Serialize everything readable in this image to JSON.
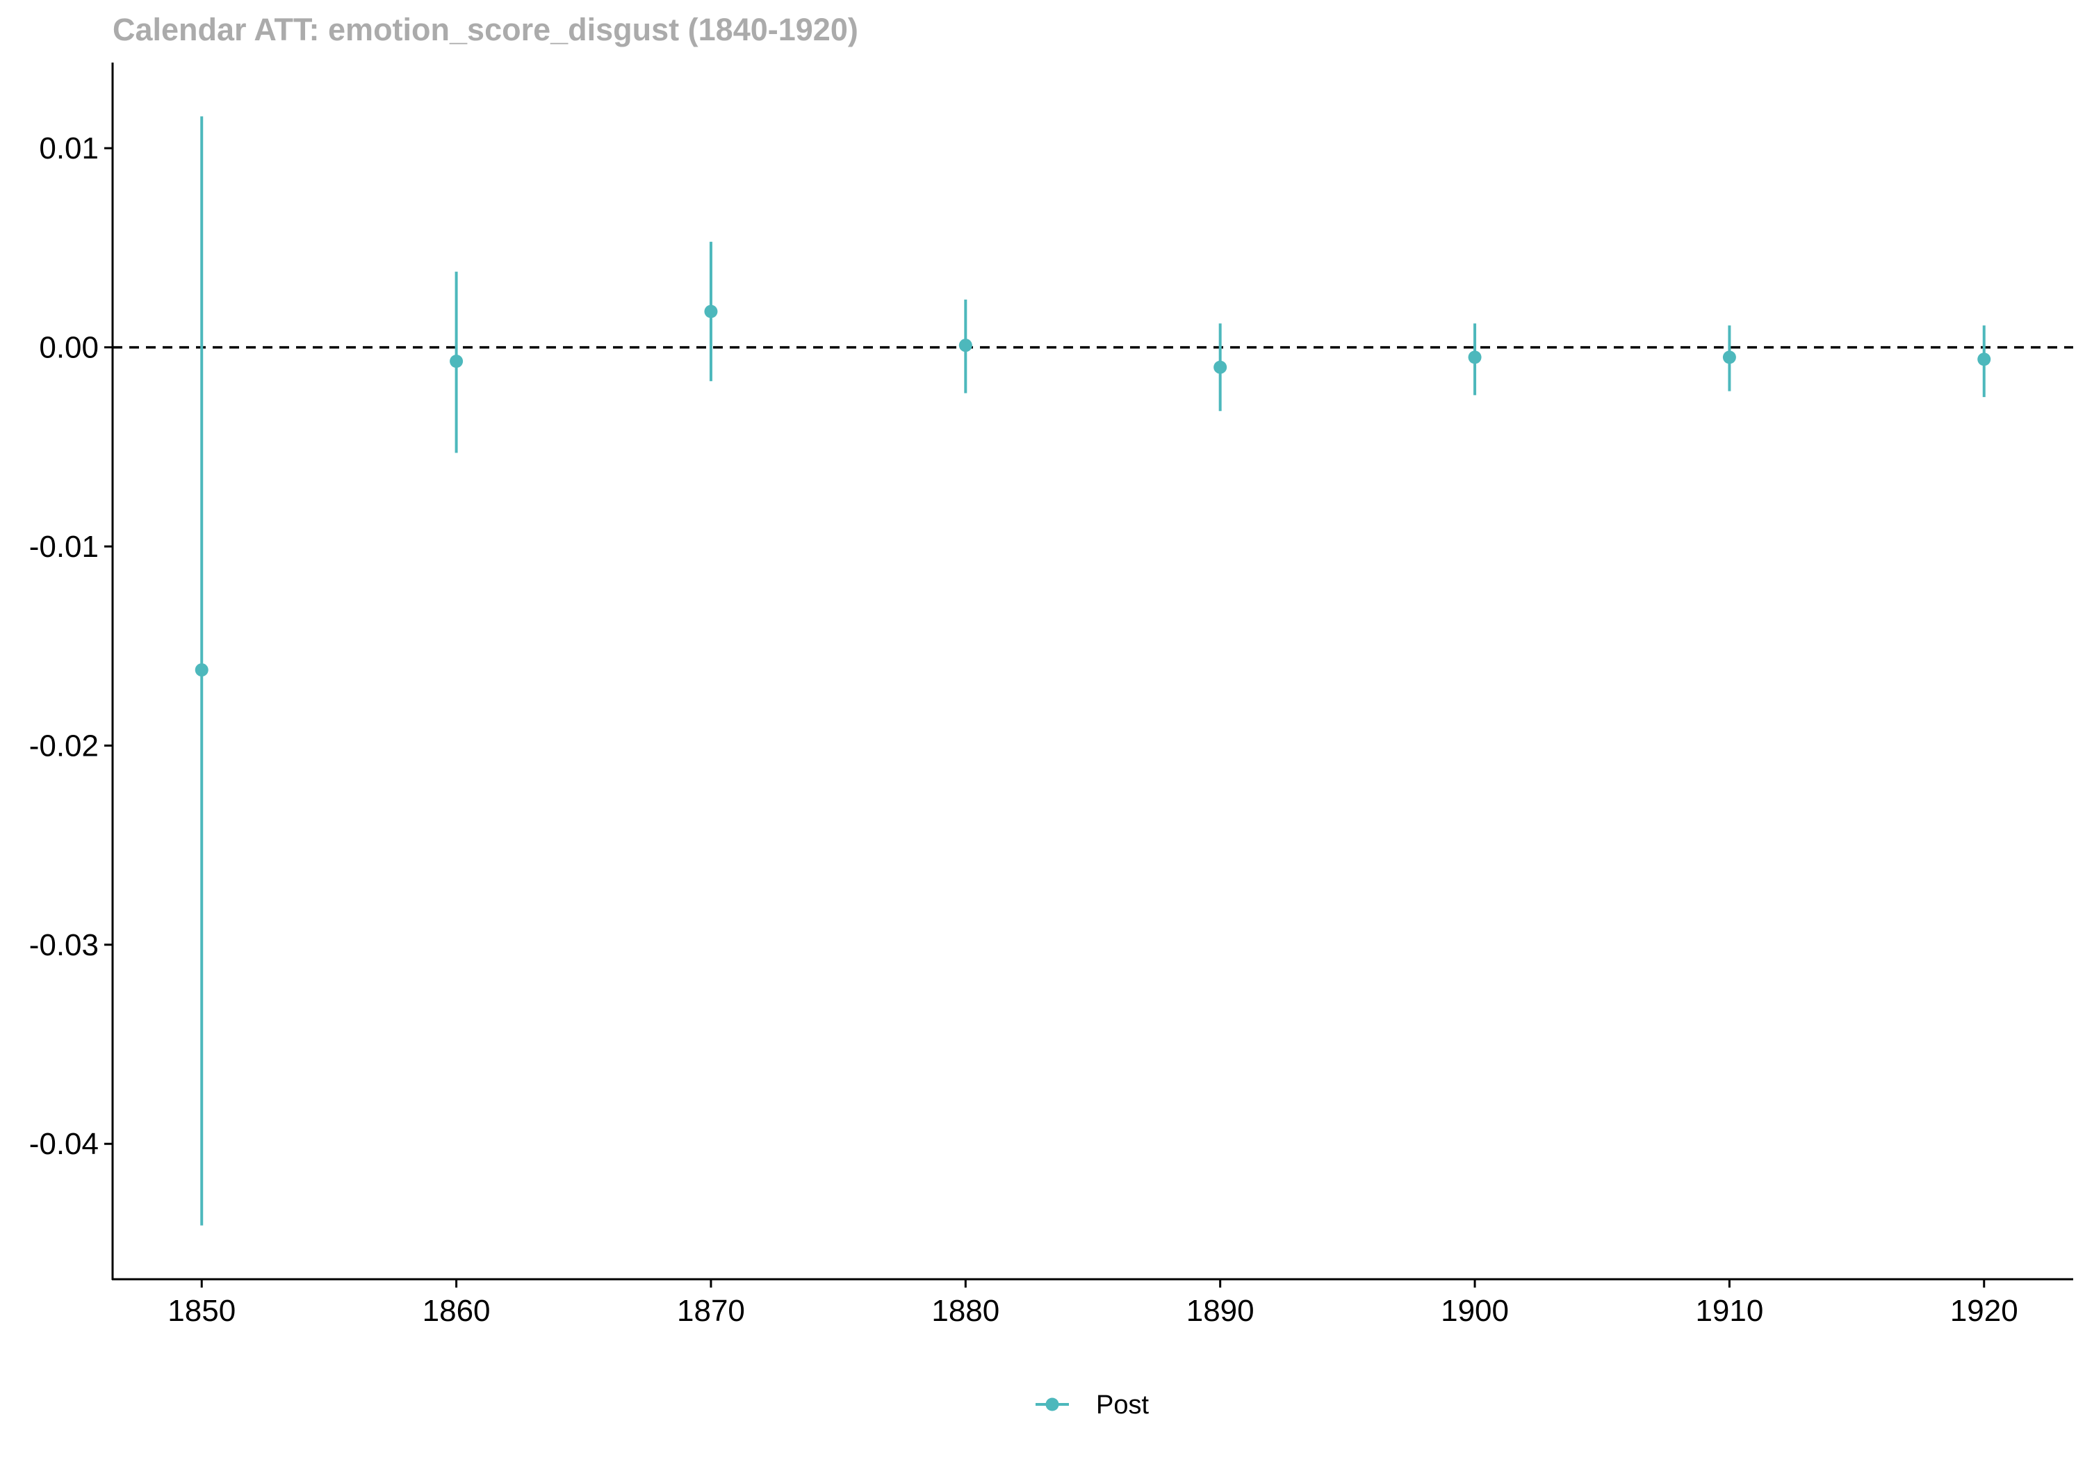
{
  "chart_data": {
    "type": "scatter",
    "title": "Calendar ATT: emotion_score_disgust (1840-1920)",
    "xlabel": "",
    "ylabel": "",
    "x_ticks": [
      1850,
      1860,
      1870,
      1880,
      1890,
      1900,
      1910,
      1920
    ],
    "x_tick_labels": [
      "1850",
      "1860",
      "1870",
      "1880",
      "1890",
      "1900",
      "1910",
      "1920"
    ],
    "y_ticks": [
      -0.04,
      -0.03,
      -0.02,
      -0.01,
      0.0,
      0.01
    ],
    "y_tick_labels": [
      "-0.04",
      "-0.03",
      "-0.02",
      "-0.01",
      "0.00",
      "0.01"
    ],
    "xlim": [
      1846.5,
      1923.5
    ],
    "ylim": [
      -0.0468,
      0.0143
    ],
    "reference_line": {
      "y": 0.0,
      "style": "dashed",
      "color": "#000000"
    },
    "legend_position": "bottom",
    "series": [
      {
        "name": "Post",
        "color": "#4db8bc",
        "points": [
          {
            "x": 1850,
            "y": -0.0162,
            "lo": -0.0441,
            "hi": 0.0116
          },
          {
            "x": 1860,
            "y": -0.0007,
            "lo": -0.0053,
            "hi": 0.0038
          },
          {
            "x": 1870,
            "y": 0.0018,
            "lo": -0.0017,
            "hi": 0.0053
          },
          {
            "x": 1880,
            "y": 0.0001,
            "lo": -0.0023,
            "hi": 0.0024
          },
          {
            "x": 1890,
            "y": -0.001,
            "lo": -0.0032,
            "hi": 0.0012
          },
          {
            "x": 1900,
            "y": -0.0005,
            "lo": -0.0024,
            "hi": 0.0012
          },
          {
            "x": 1910,
            "y": -0.0005,
            "lo": -0.0022,
            "hi": 0.0011
          },
          {
            "x": 1920,
            "y": -0.0006,
            "lo": -0.0025,
            "hi": 0.0011
          }
        ]
      }
    ]
  }
}
